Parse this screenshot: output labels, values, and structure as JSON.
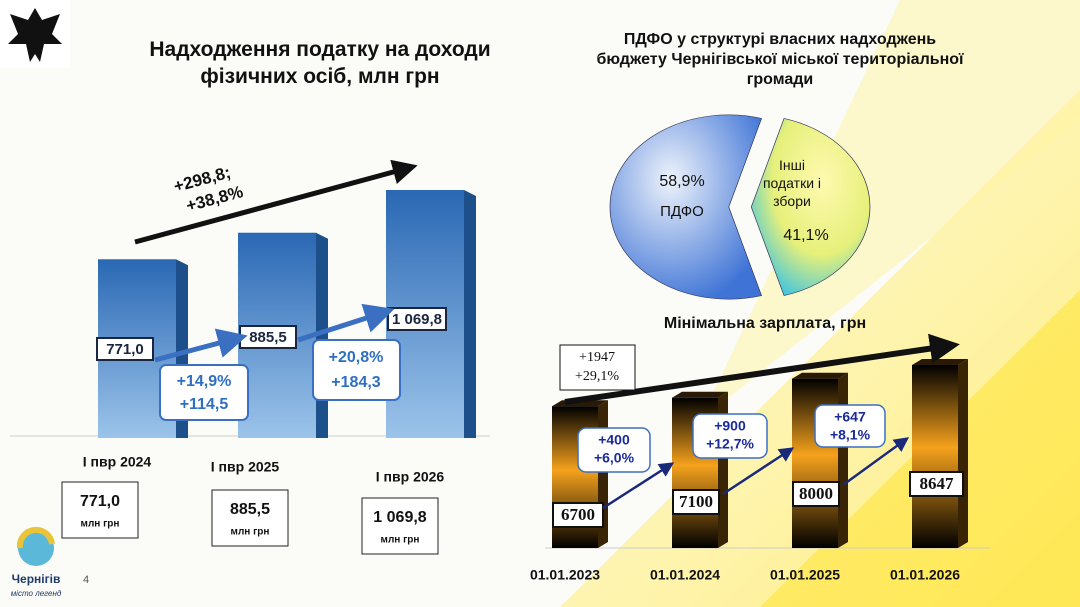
{
  "chart_data": [
    {
      "type": "bar",
      "title": "Надходження податку на доходи фізичних осіб, млн грн",
      "categories": [
        "І пвр 2024",
        "І пвр 2025",
        "І пвр 2026"
      ],
      "values": [
        771.0,
        885.5,
        1069.8
      ],
      "value_labels": [
        "771,0",
        "885,5",
        "1 069,8"
      ],
      "unit_label": "млн грн",
      "color": "#2f74c0",
      "annotations": [
        "+14,9%",
        "+114,5",
        "+20,8%",
        "+184,3",
        "+298,8;",
        "+38,8%"
      ]
    },
    {
      "type": "pie",
      "title": "ПДФО у структурі власних надходжень бюджету Чернігівської міської територіальної громади",
      "categories": [
        "ПДФО",
        "Інші податки і збори"
      ],
      "values": [
        58.9,
        41.1
      ],
      "value_labels": [
        "58,9%",
        "41,1%"
      ],
      "colors": [
        "#3f74d6",
        "#e6f07a"
      ]
    },
    {
      "type": "bar",
      "title": "Мінімальна зарплата, грн",
      "categories": [
        "01.01.2023",
        "01.01.2024",
        "01.01.2025",
        "01.01.2026"
      ],
      "values": [
        6700,
        7100,
        8000,
        8647
      ],
      "color": "#f39a1a",
      "annotations": [
        [
          "+400",
          "+6,0%"
        ],
        [
          "+900",
          "+12,7%"
        ],
        [
          "+647",
          "+8,1%"
        ],
        [
          "+1947",
          "+29,1%"
        ]
      ]
    }
  ],
  "page_number": 4,
  "logo": {
    "name": "Чернігів",
    "tagline": "місто легенд"
  }
}
